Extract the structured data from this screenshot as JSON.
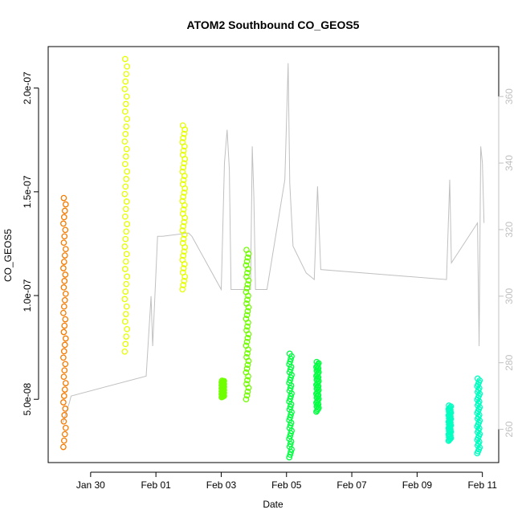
{
  "chart_data": {
    "type": "scatter",
    "title": "ATOM2 Southbound CO_GEOS5",
    "xlabel": "Date",
    "ylabel": "CO_GEOS5",
    "x_tick_labels": [
      "Jan 30",
      "Feb 01",
      "Feb 03",
      "Feb 05",
      "Feb 07",
      "Feb 09",
      "Feb 11"
    ],
    "x_tick_days": [
      30,
      32,
      34,
      36,
      38,
      40,
      42
    ],
    "xlim_days": [
      28.7,
      42.5
    ],
    "ylim": [
      1.95e-08,
      2.2e-07
    ],
    "y_ticks": [
      5e-08,
      1e-07,
      1.5e-07,
      2e-07
    ],
    "y_tick_labels": [
      "5.0e-08",
      "1.0e-07",
      "1.5e-07",
      "2.0e-07"
    ],
    "y2lim": [
      250,
      375
    ],
    "y2_ticks": [
      260,
      280,
      300,
      320,
      340,
      360
    ],
    "y2_tick_labels": [
      "260",
      "280",
      "300",
      "320",
      "340",
      "360"
    ],
    "grid": false,
    "series": [
      {
        "color": "#F47A00",
        "clusters": [
          {
            "day": 29.2,
            "ymin": 2.7e-08,
            "ymax": 1.47e-07
          }
        ]
      },
      {
        "color": "#E5FF00",
        "clusters": [
          {
            "day": 31.08,
            "ymin": 7.3e-08,
            "ymax": 2.14e-07
          },
          {
            "day": 32.85,
            "ymin": 1.03e-07,
            "ymax": 1.82e-07
          }
        ]
      },
      {
        "color": "#70FF00",
        "clusters": [
          {
            "day": 34.05,
            "ymin": 5.1e-08,
            "ymax": 5.9e-08
          },
          {
            "day": 34.8,
            "ymin": 5e-08,
            "ymax": 1.22e-07
          }
        ]
      },
      {
        "color": "#00FF40",
        "clusters": [
          {
            "day": 36.12,
            "ymin": 2.2e-08,
            "ymax": 7.2e-08
          },
          {
            "day": 36.95,
            "ymin": 4.4e-08,
            "ymax": 6.8e-08
          }
        ]
      },
      {
        "color": "#00FFC0",
        "clusters": [
          {
            "day": 41.0,
            "ymin": 3e-08,
            "ymax": 4.7e-08
          },
          {
            "day": 41.88,
            "ymin": 2.4e-08,
            "ymax": 6e-08
          }
        ]
      }
    ],
    "secondary_line": {
      "color": "#C0C0C0",
      "points": [
        [
          29.15,
          262
        ],
        [
          29.35,
          268
        ],
        [
          29.4,
          270
        ],
        [
          31.7,
          276
        ],
        [
          31.85,
          300
        ],
        [
          31.9,
          285
        ],
        [
          32.05,
          318
        ],
        [
          32.2,
          318
        ],
        [
          33.0,
          319
        ],
        [
          33.1,
          318
        ],
        [
          34.0,
          302
        ],
        [
          34.1,
          340
        ],
        [
          34.18,
          350
        ],
        [
          34.25,
          338
        ],
        [
          34.3,
          302
        ],
        [
          34.9,
          302
        ],
        [
          34.95,
          345
        ],
        [
          35.0,
          330
        ],
        [
          35.05,
          302
        ],
        [
          35.4,
          302
        ],
        [
          35.95,
          335
        ],
        [
          36.05,
          370
        ],
        [
          36.1,
          334
        ],
        [
          36.2,
          315
        ],
        [
          36.6,
          307
        ],
        [
          36.85,
          305
        ],
        [
          36.95,
          333
        ],
        [
          37.05,
          308
        ],
        [
          40.9,
          305
        ],
        [
          41.0,
          335
        ],
        [
          41.05,
          310
        ],
        [
          41.85,
          322
        ],
        [
          41.9,
          285
        ],
        [
          41.95,
          345
        ],
        [
          42.0,
          340
        ],
        [
          42.05,
          322
        ]
      ]
    }
  }
}
